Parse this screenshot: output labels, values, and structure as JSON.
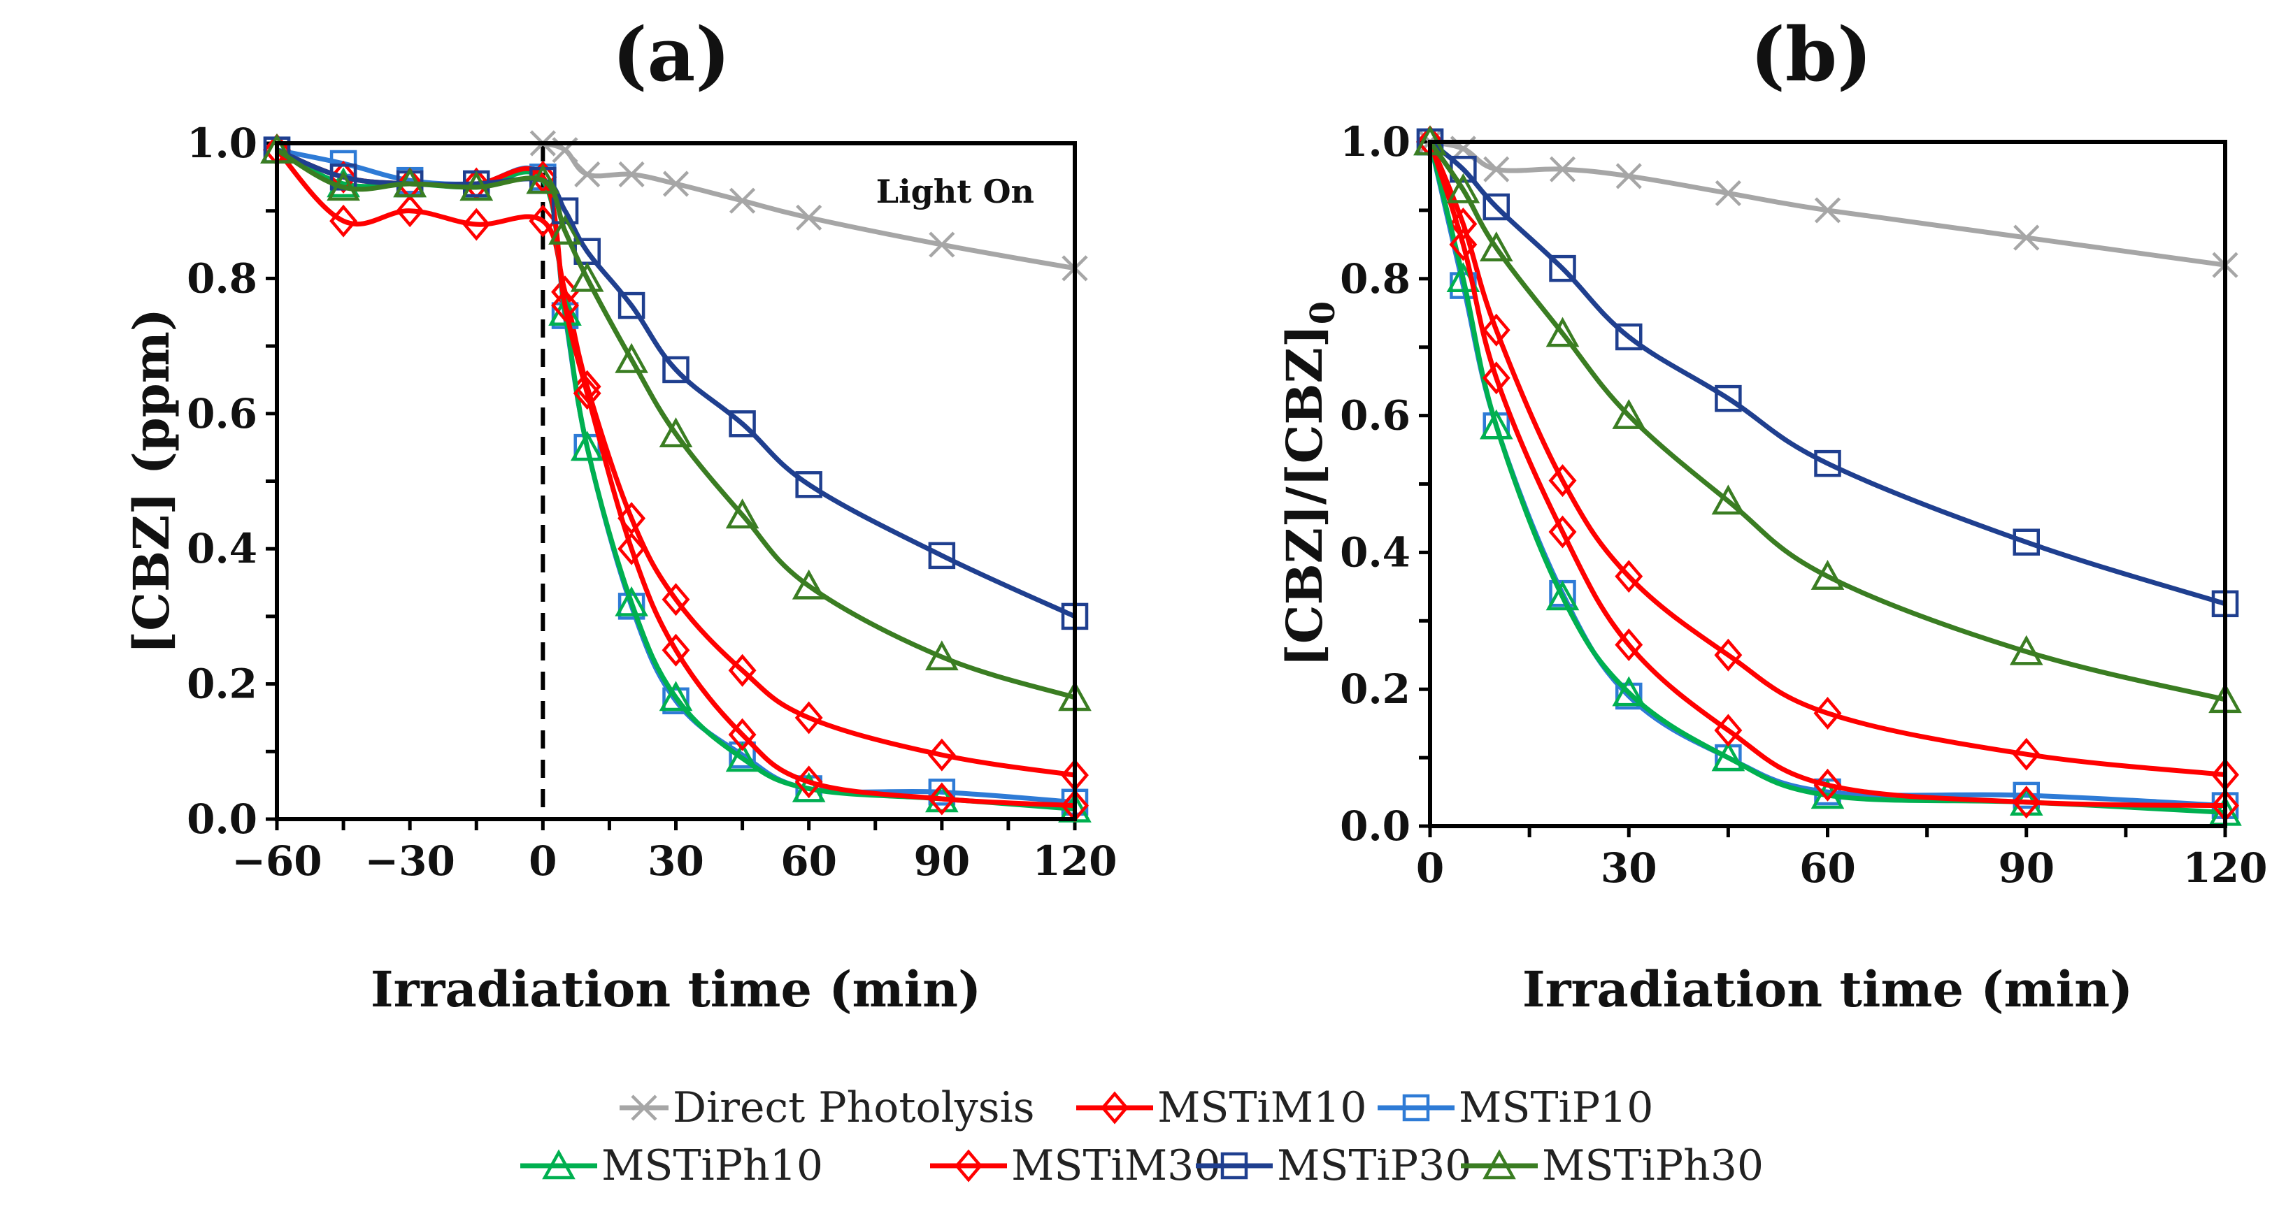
{
  "chart_data": [
    {
      "type": "line",
      "title": "(a)",
      "xlabel": "Irradiation time (min)",
      "ylabel": "[CBZ] (ppm)",
      "xlim": [
        -60,
        120
      ],
      "ylim": [
        0,
        1.0
      ],
      "xticks": [
        "−60",
        "−30",
        "0",
        "30",
        "60",
        "90",
        "120"
      ],
      "xtick_values": [
        -60,
        -30,
        0,
        30,
        60,
        90,
        120
      ],
      "yticks": [
        "0.0",
        "0.2",
        "0.4",
        "0.6",
        "0.8",
        "1.0"
      ],
      "annotation": "Light On",
      "light_on_at": 0,
      "grid": false,
      "series": [
        {
          "name": "Direct Photolysis",
          "color": "#a6a6a6",
          "marker": "x",
          "x": [
            0,
            5,
            10,
            20,
            30,
            45,
            60,
            90,
            120
          ],
          "y": [
            1.0,
            0.99,
            0.954,
            0.954,
            0.94,
            0.915,
            0.89,
            0.85,
            0.815
          ]
        },
        {
          "name": "MSTiM10",
          "color": "#ff0000",
          "marker": "diamond",
          "x": [
            -60,
            -45,
            -30,
            -15,
            0,
            5,
            10,
            20,
            30,
            45,
            60,
            90,
            120
          ],
          "y": [
            0.99,
            0.885,
            0.9,
            0.88,
            0.885,
            0.78,
            0.64,
            0.445,
            0.325,
            0.22,
            0.15,
            0.095,
            0.065
          ]
        },
        {
          "name": "MSTiP10",
          "color": "#2e7bd6",
          "marker": "square",
          "x": [
            -60,
            -45,
            -30,
            -15,
            0,
            5,
            10,
            20,
            30,
            45,
            60,
            90,
            120
          ],
          "y": [
            0.99,
            0.97,
            0.945,
            0.94,
            0.95,
            0.745,
            0.55,
            0.315,
            0.175,
            0.095,
            0.045,
            0.04,
            0.025
          ]
        },
        {
          "name": "MSTiPh10",
          "color": "#00b050",
          "marker": "triangle",
          "x": [
            -60,
            -45,
            -30,
            -15,
            0,
            5,
            10,
            20,
            30,
            45,
            60,
            90,
            120
          ],
          "y": [
            0.99,
            0.94,
            0.94,
            0.935,
            0.945,
            0.75,
            0.55,
            0.32,
            0.18,
            0.09,
            0.045,
            0.03,
            0.015
          ]
        },
        {
          "name": "MSTiM30",
          "color": "#ff0000",
          "marker": "diamond",
          "x": [
            -60,
            -45,
            -30,
            -15,
            0,
            5,
            10,
            20,
            30,
            45,
            60,
            90,
            120
          ],
          "y": [
            0.99,
            0.95,
            0.94,
            0.94,
            0.95,
            0.76,
            0.63,
            0.4,
            0.25,
            0.125,
            0.055,
            0.03,
            0.02
          ]
        },
        {
          "name": "MSTiP30",
          "color": "#1f3f8f",
          "marker": "square",
          "x": [
            -60,
            -45,
            -30,
            -15,
            0,
            5,
            10,
            20,
            30,
            45,
            60,
            90,
            120
          ],
          "y": [
            0.99,
            0.95,
            0.94,
            0.94,
            0.945,
            0.9,
            0.84,
            0.76,
            0.665,
            0.585,
            0.495,
            0.39,
            0.3
          ]
        },
        {
          "name": "MSTiPh30",
          "color": "#3a7d22",
          "marker": "triangle",
          "x": [
            -60,
            -45,
            -30,
            -15,
            0,
            5,
            10,
            20,
            30,
            45,
            60,
            90,
            120
          ],
          "y": [
            0.99,
            0.935,
            0.94,
            0.935,
            0.945,
            0.87,
            0.8,
            0.68,
            0.57,
            0.45,
            0.345,
            0.24,
            0.18
          ]
        }
      ]
    },
    {
      "type": "line",
      "title": "(b)",
      "xlabel": "Irradiation time (min)",
      "ylabel": "[CBZ]/[CBZ]",
      "ylabel_subscript": "0",
      "xlim": [
        0,
        120
      ],
      "ylim": [
        0,
        1.0
      ],
      "xticks": [
        "0",
        "30",
        "60",
        "90",
        "120"
      ],
      "xtick_values": [
        0,
        30,
        60,
        90,
        120
      ],
      "yticks": [
        "0.0",
        "0.2",
        "0.4",
        "0.6",
        "0.8",
        "1.0"
      ],
      "grid": false,
      "series": [
        {
          "name": "Direct Photolysis",
          "color": "#a6a6a6",
          "marker": "x",
          "x": [
            0,
            5,
            10,
            20,
            30,
            45,
            60,
            90,
            120
          ],
          "y": [
            1.0,
            0.99,
            0.96,
            0.96,
            0.95,
            0.925,
            0.9,
            0.86,
            0.82
          ]
        },
        {
          "name": "MSTiM10",
          "color": "#ff0000",
          "marker": "diamond",
          "x": [
            0,
            5,
            10,
            20,
            30,
            45,
            60,
            90,
            120
          ],
          "y": [
            1.0,
            0.88,
            0.725,
            0.505,
            0.365,
            0.25,
            0.165,
            0.105,
            0.075
          ]
        },
        {
          "name": "MSTiP10",
          "color": "#2e7bd6",
          "marker": "square",
          "x": [
            0,
            5,
            10,
            20,
            30,
            45,
            60,
            90,
            120
          ],
          "y": [
            1.0,
            0.79,
            0.585,
            0.34,
            0.19,
            0.1,
            0.05,
            0.045,
            0.03
          ]
        },
        {
          "name": "MSTiPh10",
          "color": "#00b050",
          "marker": "triangle",
          "x": [
            0,
            5,
            10,
            20,
            30,
            45,
            60,
            90,
            120
          ],
          "y": [
            1.0,
            0.8,
            0.585,
            0.335,
            0.195,
            0.1,
            0.045,
            0.035,
            0.02
          ]
        },
        {
          "name": "MSTiM30",
          "color": "#ff0000",
          "marker": "diamond",
          "x": [
            0,
            5,
            10,
            20,
            30,
            45,
            60,
            90,
            120
          ],
          "y": [
            1.0,
            0.85,
            0.655,
            0.43,
            0.265,
            0.14,
            0.06,
            0.035,
            0.03
          ]
        },
        {
          "name": "MSTiP30",
          "color": "#1f3f8f",
          "marker": "square",
          "x": [
            0,
            5,
            10,
            20,
            30,
            45,
            60,
            90,
            120
          ],
          "y": [
            1.0,
            0.96,
            0.905,
            0.815,
            0.715,
            0.625,
            0.53,
            0.415,
            0.325
          ]
        },
        {
          "name": "MSTiPh30",
          "color": "#3a7d22",
          "marker": "triangle",
          "x": [
            0,
            5,
            10,
            20,
            30,
            45,
            60,
            90,
            120
          ],
          "y": [
            1.0,
            0.93,
            0.845,
            0.72,
            0.6,
            0.475,
            0.365,
            0.255,
            0.185
          ]
        }
      ]
    }
  ],
  "legend": {
    "placement": "bottom",
    "items": [
      "Direct Photolysis",
      "MSTiM10",
      "MSTiP10",
      "MSTiPh10",
      "MSTiM30",
      "MSTiP30",
      "MSTiPh30"
    ]
  }
}
